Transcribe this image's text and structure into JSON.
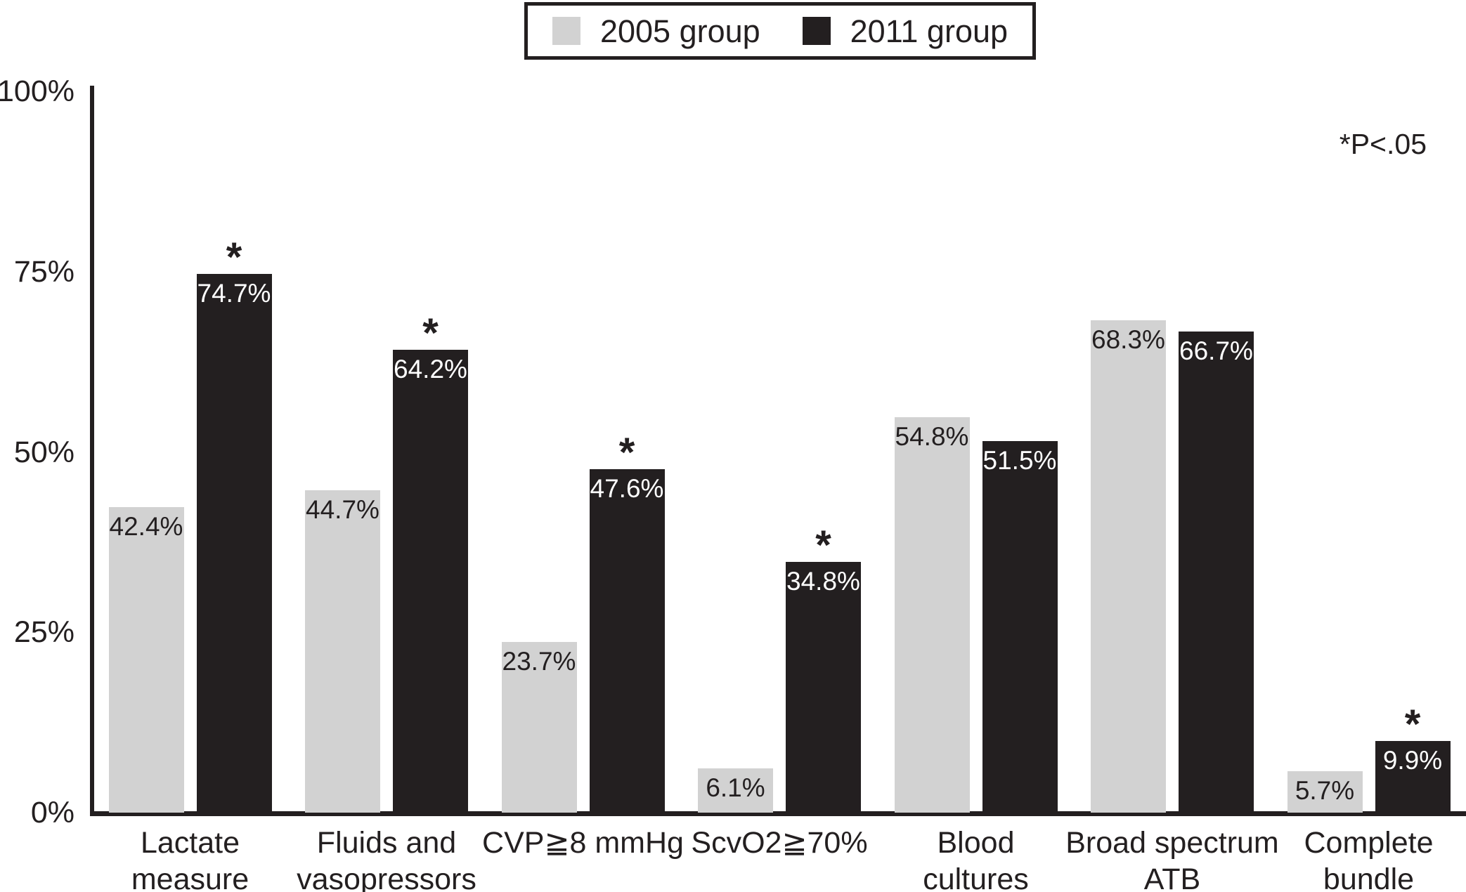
{
  "legend": {
    "items": [
      {
        "label": "2005 group",
        "color": "#d2d2d2"
      },
      {
        "label": "2011 group",
        "color": "#231f20"
      }
    ]
  },
  "annotation": "*P<.05",
  "chart_data": {
    "type": "bar",
    "title": "",
    "xlabel": "",
    "ylabel": "",
    "categories": [
      "Lactate\nmeasure",
      "Fluids and\nvasopressors",
      "CVP≧8 mmHg",
      "ScvO2≧70%",
      "Blood\ncultures",
      "Broad spectrum\nATB",
      "Complete\nbundle"
    ],
    "series": [
      {
        "name": "2005 group",
        "color": "#d2d2d2",
        "label_color": "#231f20",
        "values": [
          42.4,
          44.7,
          23.7,
          6.1,
          54.8,
          68.3,
          5.7
        ]
      },
      {
        "name": "2011 group",
        "color": "#231f20",
        "label_color": "#ffffff",
        "values": [
          74.7,
          64.2,
          47.6,
          34.8,
          51.5,
          66.7,
          9.9
        ]
      }
    ],
    "value_suffix": "%",
    "significant_star": "*",
    "significant": [
      true,
      true,
      true,
      true,
      false,
      false,
      true
    ],
    "y_ticks": [
      "100%",
      "75%",
      "50%",
      "25%",
      "0%"
    ],
    "ylim": [
      0,
      100
    ],
    "grid": false,
    "legend_position": "top"
  }
}
